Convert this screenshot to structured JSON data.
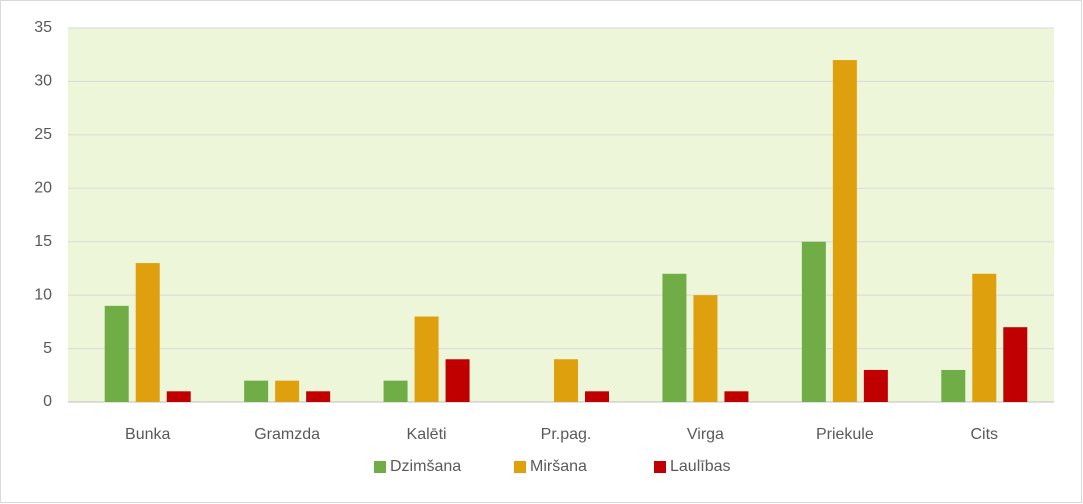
{
  "chart_data": {
    "type": "bar",
    "categories": [
      "Bunka",
      "Gramzda",
      "Kalēti",
      "Pr.pag.",
      "Virga",
      "Priekule",
      "Cits"
    ],
    "series": [
      {
        "name": "Dzimšana",
        "color": "#70ad47",
        "values": [
          9,
          2,
          2,
          0,
          12,
          15,
          3
        ]
      },
      {
        "name": "Miršana",
        "color": "#dfa00e",
        "values": [
          13,
          2,
          8,
          4,
          10,
          32,
          12
        ]
      },
      {
        "name": "Laulības",
        "color": "#c00000",
        "values": [
          1,
          1,
          4,
          1,
          1,
          3,
          7
        ]
      }
    ],
    "ylim": [
      0,
      35
    ],
    "yticks": [
      0,
      5,
      10,
      15,
      20,
      25,
      30,
      35
    ],
    "grid": true,
    "legend": "bottom"
  }
}
